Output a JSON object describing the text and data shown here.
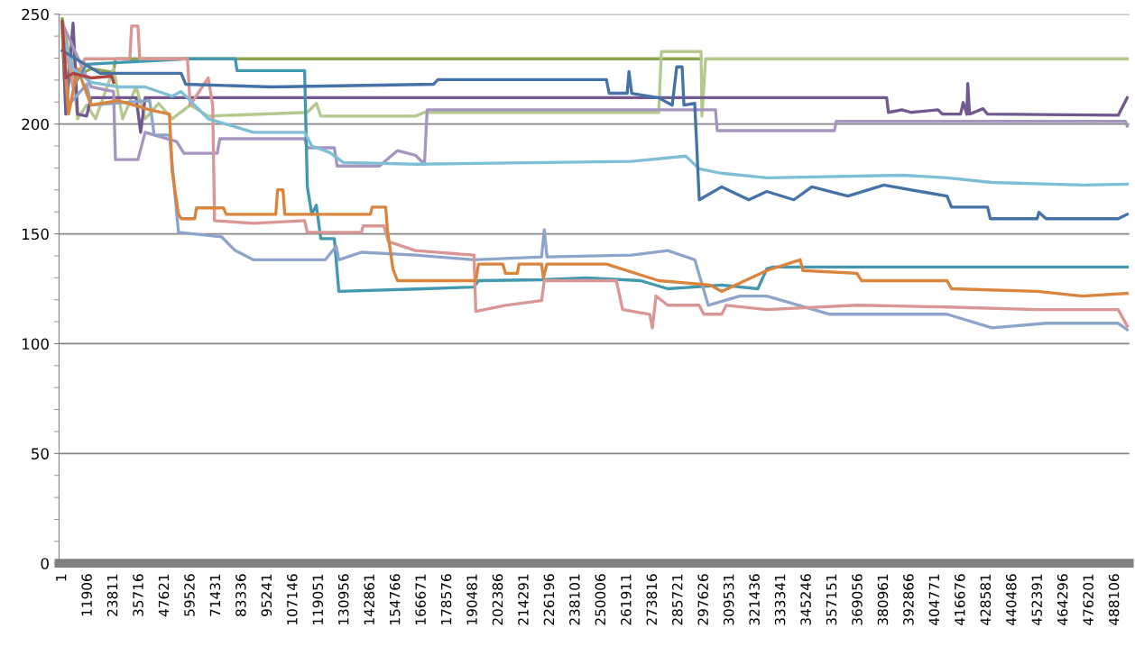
{
  "chart_data": {
    "type": "line",
    "xlim": [
      -1500,
      494700
    ],
    "ylim": [
      0,
      250
    ],
    "yticks": [
      0,
      50,
      100,
      150,
      200,
      250
    ],
    "xticks": [
      1,
      11906,
      23811,
      35716,
      47621,
      59526,
      71431,
      83336,
      95241,
      107146,
      119051,
      130956,
      142861,
      154766,
      166671,
      178576,
      190481,
      202386,
      214291,
      226196,
      238101,
      250006,
      261911,
      273816,
      285721,
      297626,
      309531,
      321436,
      333341,
      345246,
      357151,
      369056,
      380961,
      392866,
      404771,
      416676,
      428581,
      440486,
      452391,
      464296,
      476201,
      488106
    ],
    "grid": "y",
    "legend": false,
    "marker": "none",
    "line_style": "solid",
    "series": [
      {
        "color": "#89a54e",
        "x": [
          1,
          5012,
          13366,
          23809,
          24644,
          296149
        ],
        "values": [
          247.9,
          221,
          225.2,
          223.5,
          229.7,
          229.7
        ]
      },
      {
        "color": "#b3c98d",
        "x": [
          1,
          1671,
          4177,
          7101,
          11278,
          15455,
          23809,
          27986,
          34251,
          38428,
          44694,
          50959,
          59313,
          67667,
          113614,
          117791,
          119880,
          163738,
          167915,
          276518,
          277771,
          296149,
          296567,
          298238,
          493722
        ],
        "values": [
          241.7,
          204.5,
          233.4,
          202.4,
          208.6,
          202.4,
          225.2,
          202.4,
          216.9,
          202.4,
          209.4,
          202.4,
          208.6,
          203.6,
          205.3,
          209.4,
          203.6,
          203.6,
          205.3,
          205.3,
          233,
          233,
          203.6,
          229.7,
          229.7
        ]
      },
      {
        "color": "#71588f",
        "x": [
          1,
          1671,
          5012,
          7101,
          11278,
          13366,
          34251,
          36340,
          38428,
          382196,
          383031,
          389296,
          393473,
          406004,
          408093,
          416447,
          417700,
          419371,
          419789,
          420624,
          426890,
          428978,
          489545,
          493722
        ],
        "values": [
          245.9,
          204.5,
          245.9,
          204.5,
          203.6,
          212,
          212,
          196.2,
          212,
          212,
          205.3,
          206.5,
          205.3,
          206.5,
          204.5,
          204.5,
          209.8,
          204.5,
          218.5,
          204.5,
          207,
          204.5,
          204,
          212
        ]
      },
      {
        "color": "#a695c0",
        "x": [
          1,
          13366,
          23809,
          24644,
          35087,
          38428,
          53048,
          56390,
          71844,
          73097,
          112361,
          113614,
          126145,
          127399,
          147030,
          155384,
          163738,
          167915,
          169169,
          302825,
          303665,
          357969,
          358804,
          492887,
          493722
        ],
        "values": [
          245.9,
          216.9,
          214.8,
          183.8,
          183.8,
          196.2,
          192,
          186.7,
          186.7,
          193.3,
          193.3,
          189.2,
          189.2,
          180.9,
          180.9,
          187.9,
          185.8,
          181.7,
          206.5,
          206.5,
          197,
          197,
          201.2,
          201.2,
          199.1
        ]
      },
      {
        "color": "#4198af",
        "x": [
          1,
          5012,
          11278,
          58060,
          80198,
          81034,
          112361,
          113614,
          115703,
          117791,
          119880,
          126145,
          128234,
          167915,
          190889,
          192977,
          222218,
          243101,
          268163,
          280698,
          305757,
          322464,
          326641,
          329565,
          493722
        ],
        "values": [
          243.8,
          216.9,
          227.2,
          229.7,
          229.7,
          224.3,
          224.3,
          171.4,
          158.9,
          163,
          147.8,
          147.8,
          123.8,
          125,
          125.8,
          128.7,
          129.1,
          130,
          128.7,
          125,
          126.7,
          125,
          134.1,
          134.9,
          134.9
        ]
      },
      {
        "color": "#8ea5cb",
        "x": [
          1,
          2924,
          11278,
          13366,
          40517,
          42605,
          49706,
          53884,
          73933,
          80198,
          88552,
          121968,
          126981,
          128234,
          138676,
          163738,
          190889,
          222218,
          223470,
          224723,
          263986,
          280698,
          293225,
          299486,
          314111,
          326641,
          355880,
          410181,
          431064,
          456129,
          489545,
          493722
        ],
        "values": [
          245.9,
          208.6,
          218.1,
          208.6,
          210.7,
          195,
          195,
          150.7,
          148.6,
          142.4,
          138.2,
          138.2,
          144.4,
          138.2,
          141.6,
          140.3,
          138.2,
          139.5,
          151.9,
          139.5,
          140.3,
          142.4,
          138.2,
          117.5,
          121.7,
          121.7,
          113.4,
          113.4,
          107.2,
          109.3,
          109.3,
          106.4
        ]
      },
      {
        "color": "#d99694",
        "x": [
          1,
          5012,
          10443,
          31328,
          32163,
          35087,
          35922,
          58060,
          59313,
          67667,
          69756,
          70591,
          88552,
          112361,
          113614,
          138676,
          139512,
          149119,
          151207,
          163738,
          190889,
          191724,
          205508,
          222218,
          223470,
          256886,
          259809,
          272340,
          273594,
          275264,
          280698,
          295314,
          297402,
          305757,
          307845,
          326641,
          368410,
          410181,
          451952,
          489545,
          493722
        ],
        "values": [
          245.9,
          216.9,
          229.7,
          229.7,
          244.6,
          244.6,
          229.7,
          229.7,
          208.6,
          221,
          208.6,
          156,
          154.8,
          156,
          150.7,
          150.7,
          153.6,
          153.6,
          146.5,
          142.4,
          140.3,
          114.7,
          117.5,
          119.6,
          128.7,
          128.7,
          115.5,
          113.4,
          107.2,
          121.7,
          117.5,
          117.5,
          113.4,
          113.4,
          117.5,
          115.5,
          117.5,
          116.7,
          115.5,
          115.5,
          108
        ]
      },
      {
        "color": "#db843d",
        "x": [
          1,
          2924,
          7101,
          13366,
          25897,
          40517,
          49706,
          50959,
          53884,
          55136,
          61402,
          62237,
          74768,
          76021,
          98994,
          99830,
          102337,
          103172,
          142853,
          143688,
          149954,
          150790,
          153300,
          155384,
          191724,
          192977,
          204255,
          205508,
          210939,
          211774,
          222218,
          223054,
          224723,
          252291,
          276518,
          300329,
          305757,
          326641,
          342095,
          343349,
          368410,
          370499,
          410181,
          412270,
          451952,
          472832,
          493722
        ],
        "values": [
          241.7,
          204.5,
          225.2,
          208.6,
          210.7,
          206.5,
          204.5,
          178.4,
          158.9,
          156.9,
          156.9,
          161.8,
          161.8,
          158.9,
          158.9,
          170.1,
          170.1,
          158.9,
          158.9,
          162.2,
          162.2,
          151.5,
          134.1,
          128.7,
          128.7,
          136.2,
          136.2,
          132,
          132,
          136.2,
          136.2,
          130,
          136.2,
          136.2,
          128.7,
          126.7,
          123.8,
          133.3,
          138.2,
          133.3,
          132,
          128.7,
          128.7,
          125,
          123.8,
          121.7,
          122.9
        ]
      },
      {
        "color": "#7fbfd6",
        "x": [
          1,
          5012,
          13366,
          25897,
          38428,
          50959,
          55136,
          67667,
          88552,
          112361,
          115703,
          124057,
          130322,
          163738,
          263986,
          289048,
          295314,
          305757,
          326641,
          389296,
          410181,
          431064,
          472832,
          493722
        ],
        "values": [
          241.7,
          225.2,
          219,
          216.9,
          216.9,
          212.7,
          214.8,
          202.4,
          196.2,
          196.2,
          190,
          187,
          182.5,
          181.7,
          183,
          185.4,
          179.6,
          177.6,
          175.5,
          176.7,
          175.5,
          173.4,
          172.2,
          172.6
        ]
      },
      {
        "color": "#4572a7",
        "x": [
          1,
          17543,
          55136,
          57225,
          96906,
          172092,
          174181,
          252291,
          253544,
          261898,
          262734,
          263986,
          276518,
          282783,
          284872,
          287378,
          288214,
          293225,
          295314,
          305757,
          318287,
          326641,
          339172,
          347526,
          364234,
          380942,
          397650,
          410181,
          412270,
          428978,
          430231,
          451952,
          452787,
          456129,
          489545,
          493722
        ],
        "values": [
          233.4,
          223.1,
          223.1,
          218.1,
          216.9,
          218.1,
          220.2,
          220.2,
          214,
          214,
          223.9,
          214,
          211.9,
          208.6,
          226,
          226,
          208.6,
          209.4,
          165.5,
          171.4,
          165.5,
          169.3,
          165.5,
          171.4,
          167.2,
          172.2,
          169.3,
          167.2,
          162.2,
          162.2,
          156.9,
          156.9,
          159.8,
          156.9,
          156.9,
          158.9
        ]
      },
      {
        "color": "#aa4643",
        "x": [
          1,
          1671,
          5012,
          13366,
          22974,
          23809
        ],
        "values": [
          246.7,
          221,
          223.1,
          221,
          221.8,
          219
        ]
      }
    ]
  }
}
